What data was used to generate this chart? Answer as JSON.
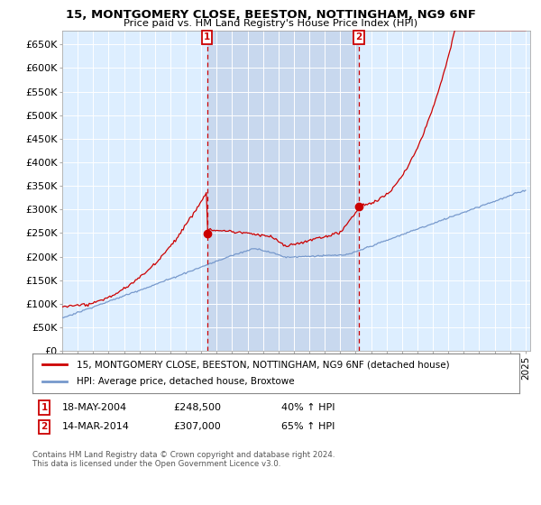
{
  "title1": "15, MONTGOMERY CLOSE, BEESTON, NOTTINGHAM, NG9 6NF",
  "title2": "Price paid vs. HM Land Registry's House Price Index (HPI)",
  "property_label": "15, MONTGOMERY CLOSE, BEESTON, NOTTINGHAM, NG9 6NF (detached house)",
  "hpi_label": "HPI: Average price, detached house, Broxtowe",
  "sale1_date": "18-MAY-2004",
  "sale1_price": "£248,500",
  "sale1_hpi": "40% ↑ HPI",
  "sale2_date": "14-MAR-2014",
  "sale2_price": "£307,000",
  "sale2_hpi": "65% ↑ HPI",
  "footnote": "Contains HM Land Registry data © Crown copyright and database right 2024.\nThis data is licensed under the Open Government Licence v3.0.",
  "line_color_property": "#cc0000",
  "line_color_hpi": "#7799cc",
  "shade_color": "#c8d8ee",
  "background_color": "#ddeeff",
  "ylim": [
    0,
    680000
  ],
  "yticks": [
    0,
    50000,
    100000,
    150000,
    200000,
    250000,
    300000,
    350000,
    400000,
    450000,
    500000,
    550000,
    600000,
    650000
  ],
  "xlim_start": 1995.0,
  "xlim_end": 2025.3,
  "sale1_x": 2004.375,
  "sale1_y": 248500,
  "sale2_x": 2014.208,
  "sale2_y": 307000
}
